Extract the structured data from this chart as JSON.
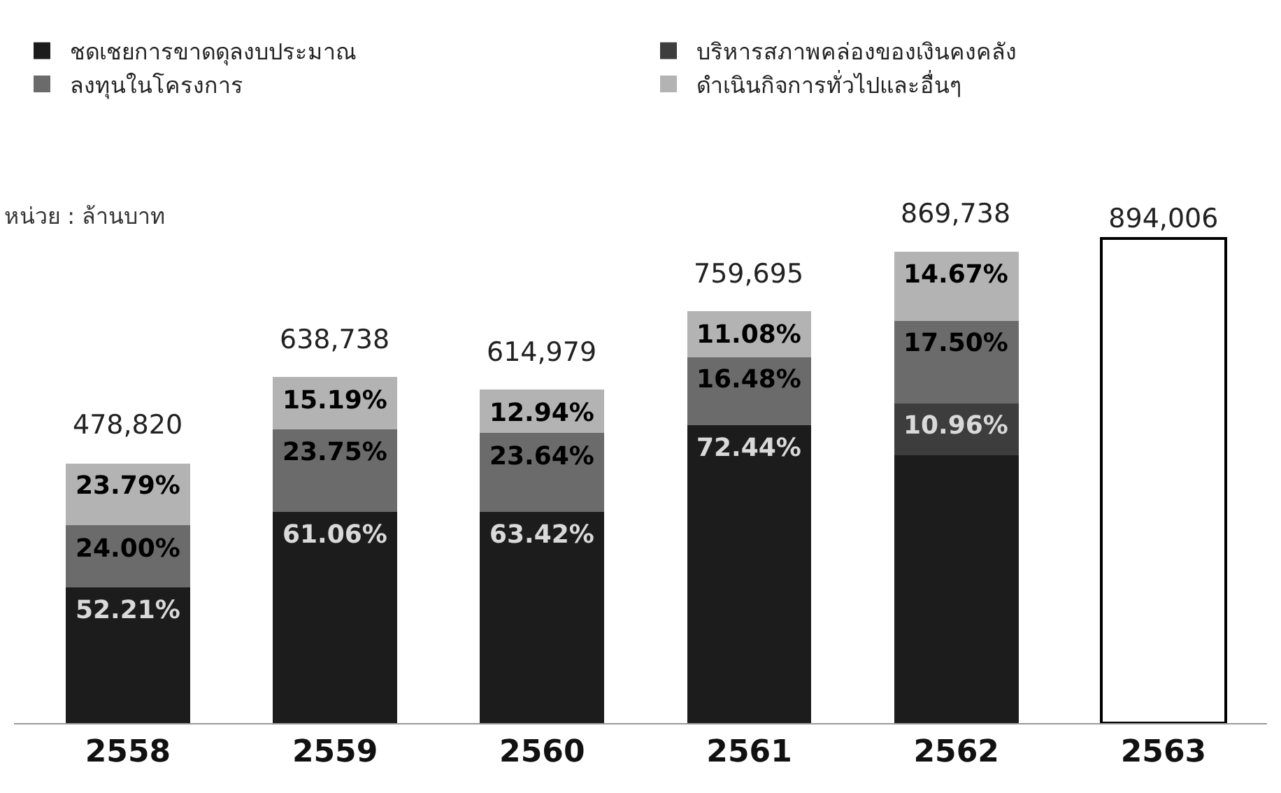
{
  "chart_data": {
    "type": "bar",
    "stacked": true,
    "categories": [
      "2558",
      "2559",
      "2560",
      "2561",
      "2562",
      "2563"
    ],
    "series": [
      {
        "name": "ชดเชยการขาดดุลงบประมาณ",
        "color": "#1c1c1c",
        "values": [
          249992,
          390013,
          390020,
          550323,
          494620,
          null
        ]
      },
      {
        "name": "บริหารสภาพคล่องของเงินคงคลัง",
        "color": "#3d3d3d",
        "values": [
          null,
          null,
          null,
          null,
          95323,
          null
        ]
      },
      {
        "name": "ลงทุนในโครงการ",
        "color": "#6b6b6b",
        "values": [
          114917,
          151700,
          145381,
          125198,
          152204,
          null
        ]
      },
      {
        "name": "ดำเนินกิจการทั่วไปและอื่นๆ",
        "color": "#b3b3b3",
        "values": [
          113911,
          97024,
          79578,
          84174,
          127591,
          null
        ]
      },
      {
        "color": "#ffffff",
        "values": [
          null,
          null,
          null,
          null,
          null,
          894006
        ],
        "value_labels": [
          null,
          null,
          null,
          null,
          null,
          "894,006"
        ]
      }
    ],
    "totals": [
      "478,820",
      "638,738",
      "614,979",
      "759,695",
      "869,738",
      null
    ],
    "annotations": [
      "หน่วย : ล้านบาท",
      {
        "text": "52.21%",
        "x": "2558",
        "y": 249992
      },
      {
        "text": "24.00%",
        "x": "2558",
        "y": 364909
      },
      {
        "text": "23.79%",
        "x": "2558",
        "y": 478820
      },
      {
        "text": "61.06%",
        "x": "2559",
        "y": 390013
      },
      {
        "text": "23.75%",
        "x": "2559",
        "y": 541713
      },
      {
        "text": "15.19%",
        "x": "2559",
        "y": 638737
      },
      {
        "text": "63.42%",
        "x": "2560",
        "y": 390020
      },
      {
        "text": "23.64%",
        "x": "2560",
        "y": 535401
      },
      {
        "text": "12.94%",
        "x": "2560",
        "y": 614979
      },
      {
        "text": "72.44%",
        "x": "2561",
        "y": 550323
      },
      {
        "text": "16.48%",
        "x": "2561",
        "y": 675521
      },
      {
        "text": "11.08%",
        "x": "2561",
        "y": 759695
      },
      {
        "text": "10.96%",
        "x": "2562",
        "y": 589943
      },
      {
        "text": "17.50%",
        "x": "2562",
        "y": 742147
      },
      {
        "text": "14.67%",
        "x": "2562",
        "y": 869738
      }
    ],
    "legend": "top"
  }
}
